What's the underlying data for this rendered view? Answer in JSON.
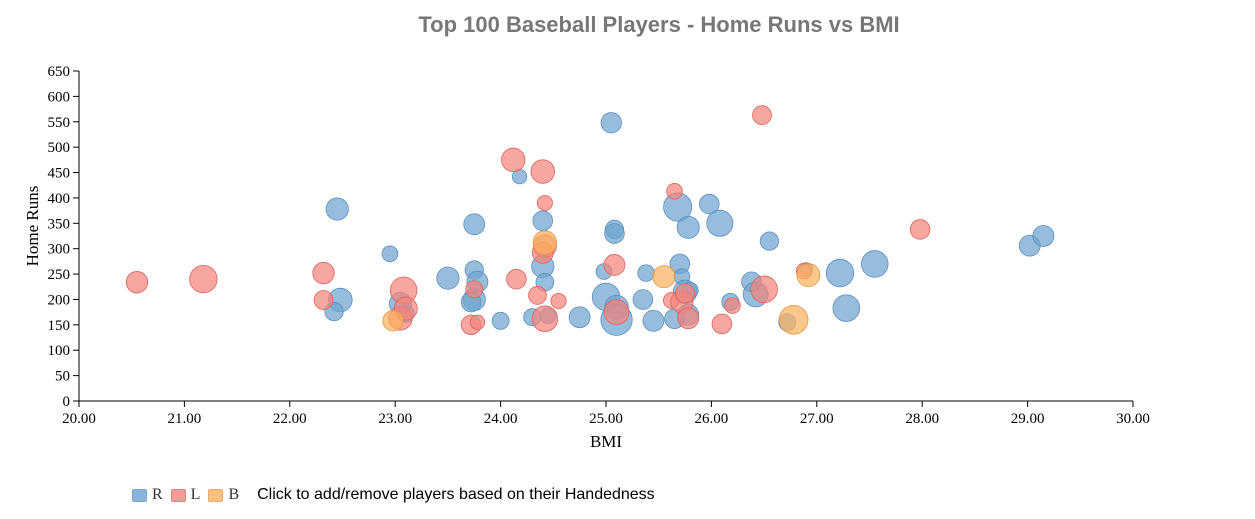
{
  "chart_data": {
    "type": "scatter",
    "title": "Top 100 Baseball Players - Home Runs vs BMI",
    "xlabel": "BMI",
    "ylabel": "Home Runs",
    "xlim": [
      20,
      30
    ],
    "ylim": [
      0,
      650
    ],
    "x_ticks": [
      "20.00",
      "21.00",
      "22.00",
      "23.00",
      "24.00",
      "25.00",
      "26.00",
      "27.00",
      "28.00",
      "29.00",
      "30.00"
    ],
    "y_ticks": [
      "0",
      "50",
      "100",
      "150",
      "200",
      "250",
      "300",
      "350",
      "400",
      "450",
      "500",
      "550",
      "600",
      "650"
    ],
    "bubble_size": "relative",
    "legend_hint": "Click to add/remove players based on their Handedness",
    "legend_position": "bottom-left",
    "series": [
      {
        "name": "R",
        "color": "#6fa3cf",
        "points": [
          [
            22.45,
            378,
            0.55
          ],
          [
            22.48,
            199,
            0.6
          ],
          [
            22.42,
            176,
            0.4
          ],
          [
            22.95,
            290,
            0.3
          ],
          [
            23.05,
            192,
            0.55
          ],
          [
            23.1,
            172,
            0.35
          ],
          [
            23.5,
            242,
            0.55
          ],
          [
            23.75,
            348,
            0.5
          ],
          [
            23.75,
            258,
            0.4
          ],
          [
            23.75,
            200,
            0.55
          ],
          [
            23.78,
            235,
            0.5
          ],
          [
            23.72,
            195,
            0.45
          ],
          [
            24.0,
            158,
            0.35
          ],
          [
            24.18,
            442,
            0.25
          ],
          [
            24.4,
            355,
            0.45
          ],
          [
            24.4,
            265,
            0.55
          ],
          [
            24.42,
            234,
            0.38
          ],
          [
            24.3,
            165,
            0.35
          ],
          [
            24.45,
            168,
            0.3
          ],
          [
            24.75,
            165,
            0.5
          ],
          [
            24.98,
            255,
            0.3
          ],
          [
            25.05,
            548,
            0.48
          ],
          [
            25.08,
            338,
            0.4
          ],
          [
            25.08,
            330,
            0.45
          ],
          [
            25.0,
            205,
            0.75
          ],
          [
            25.1,
            185,
            0.6
          ],
          [
            25.1,
            160,
            0.9
          ],
          [
            25.35,
            200,
            0.45
          ],
          [
            25.38,
            252,
            0.33
          ],
          [
            25.45,
            158,
            0.5
          ],
          [
            25.68,
            382,
            0.78
          ],
          [
            25.7,
            270,
            0.45
          ],
          [
            25.72,
            245,
            0.3
          ],
          [
            25.75,
            215,
            0.6
          ],
          [
            25.8,
            218,
            0.3
          ],
          [
            25.78,
            170,
            0.5
          ],
          [
            25.65,
            162,
            0.45
          ],
          [
            25.78,
            342,
            0.55
          ],
          [
            25.98,
            388,
            0.45
          ],
          [
            26.08,
            350,
            0.7
          ],
          [
            26.18,
            195,
            0.35
          ],
          [
            26.38,
            235,
            0.45
          ],
          [
            26.42,
            210,
            0.65
          ],
          [
            26.55,
            315,
            0.4
          ],
          [
            26.72,
            155,
            0.35
          ],
          [
            26.9,
            260,
            0.18
          ],
          [
            27.22,
            252,
            0.75
          ],
          [
            27.28,
            183,
            0.72
          ],
          [
            27.55,
            270,
            0.72
          ],
          [
            29.02,
            306,
            0.5
          ],
          [
            29.15,
            325,
            0.5
          ]
        ]
      },
      {
        "name": "L",
        "color": "#f4847c",
        "points": [
          [
            20.55,
            234,
            0.52
          ],
          [
            21.18,
            240,
            0.75
          ],
          [
            22.32,
            252,
            0.52
          ],
          [
            22.32,
            199,
            0.42
          ],
          [
            23.05,
            163,
            0.6
          ],
          [
            23.08,
            218,
            0.72
          ],
          [
            23.1,
            182,
            0.58
          ],
          [
            23.72,
            150,
            0.45
          ],
          [
            23.75,
            220,
            0.35
          ],
          [
            23.78,
            155,
            0.25
          ],
          [
            24.12,
            475,
            0.6
          ],
          [
            24.15,
            240,
            0.45
          ],
          [
            24.4,
            452,
            0.6
          ],
          [
            24.42,
            390,
            0.28
          ],
          [
            24.42,
            305,
            0.58
          ],
          [
            24.4,
            292,
            0.5
          ],
          [
            24.35,
            208,
            0.38
          ],
          [
            24.42,
            162,
            0.68
          ],
          [
            24.55,
            197,
            0.28
          ],
          [
            25.08,
            268,
            0.5
          ],
          [
            25.1,
            175,
            0.65
          ],
          [
            25.62,
            198,
            0.3
          ],
          [
            25.65,
            413,
            0.3
          ],
          [
            25.72,
            195,
            0.55
          ],
          [
            25.75,
            212,
            0.42
          ],
          [
            25.78,
            163,
            0.5
          ],
          [
            26.1,
            152,
            0.45
          ],
          [
            26.2,
            188,
            0.3
          ],
          [
            26.48,
            563,
            0.42
          ],
          [
            26.5,
            220,
            0.72
          ],
          [
            26.88,
            256,
            0.3
          ],
          [
            27.98,
            338,
            0.45
          ]
        ]
      },
      {
        "name": "B",
        "color": "#f9b25d",
        "points": [
          [
            22.98,
            158,
            0.48
          ],
          [
            24.42,
            312,
            0.6
          ],
          [
            25.55,
            245,
            0.55
          ],
          [
            26.78,
            160,
            0.8
          ],
          [
            26.92,
            248,
            0.58
          ]
        ]
      }
    ]
  }
}
